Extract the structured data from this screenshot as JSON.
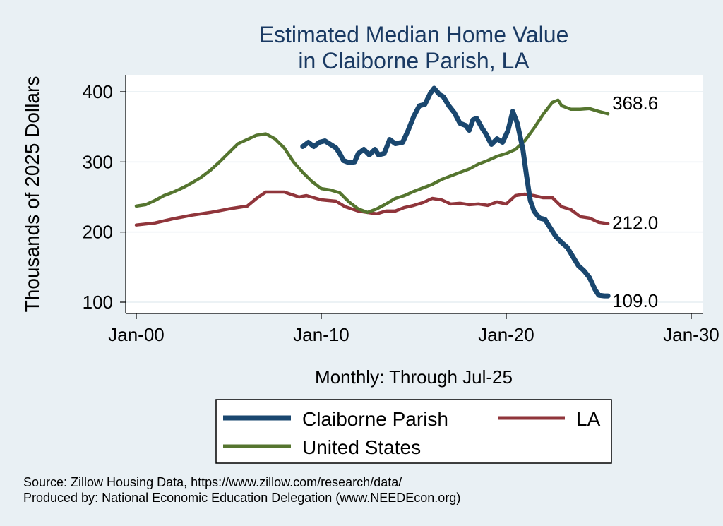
{
  "chart_data": {
    "type": "line",
    "title": [
      "Estimated Median Home Value",
      "in Claiborne Parish, LA"
    ],
    "xlabel": "Monthly: Through Jul-25",
    "ylabel": "Thousands of 2025 Dollars",
    "xlim": [
      2000,
      2030
    ],
    "ylim": [
      100,
      400
    ],
    "x_ticks": [
      {
        "value": 2000,
        "label": "Jan-00"
      },
      {
        "value": 2010,
        "label": "Jan-10"
      },
      {
        "value": 2020,
        "label": "Jan-20"
      },
      {
        "value": 2030,
        "label": "Jan-30"
      }
    ],
    "y_ticks": [
      {
        "value": 100,
        "label": "100"
      },
      {
        "value": 200,
        "label": "200"
      },
      {
        "value": 300,
        "label": "300"
      },
      {
        "value": 400,
        "label": "400"
      }
    ],
    "grid": true,
    "legend_position": "bottom",
    "series": [
      {
        "name": "Claiborne Parish",
        "color": "#1a476f",
        "end_label": "109.0",
        "points": [
          [
            2009.0,
            322
          ],
          [
            2009.3,
            328
          ],
          [
            2009.6,
            322
          ],
          [
            2009.9,
            328
          ],
          [
            2010.2,
            330
          ],
          [
            2010.5,
            325
          ],
          [
            2010.8,
            320
          ],
          [
            2011.0,
            312
          ],
          [
            2011.2,
            302
          ],
          [
            2011.5,
            299
          ],
          [
            2011.8,
            300
          ],
          [
            2012.0,
            312
          ],
          [
            2012.3,
            318
          ],
          [
            2012.6,
            310
          ],
          [
            2012.9,
            318
          ],
          [
            2013.1,
            310
          ],
          [
            2013.4,
            312
          ],
          [
            2013.7,
            332
          ],
          [
            2014.0,
            326
          ],
          [
            2014.4,
            328
          ],
          [
            2014.7,
            345
          ],
          [
            2015.0,
            365
          ],
          [
            2015.3,
            380
          ],
          [
            2015.6,
            382
          ],
          [
            2015.9,
            398
          ],
          [
            2016.1,
            405
          ],
          [
            2016.4,
            396
          ],
          [
            2016.6,
            393
          ],
          [
            2016.9,
            380
          ],
          [
            2017.2,
            370
          ],
          [
            2017.5,
            355
          ],
          [
            2017.8,
            352
          ],
          [
            2018.0,
            345
          ],
          [
            2018.2,
            360
          ],
          [
            2018.4,
            362
          ],
          [
            2018.7,
            348
          ],
          [
            2018.9,
            340
          ],
          [
            2019.2,
            325
          ],
          [
            2019.5,
            333
          ],
          [
            2019.8,
            328
          ],
          [
            2020.1,
            345
          ],
          [
            2020.35,
            372
          ],
          [
            2020.6,
            355
          ],
          [
            2020.9,
            318
          ],
          [
            2021.1,
            280
          ],
          [
            2021.3,
            245
          ],
          [
            2021.5,
            230
          ],
          [
            2021.8,
            220
          ],
          [
            2022.1,
            218
          ],
          [
            2022.4,
            205
          ],
          [
            2022.7,
            193
          ],
          [
            2023.0,
            185
          ],
          [
            2023.3,
            178
          ],
          [
            2023.6,
            165
          ],
          [
            2023.9,
            152
          ],
          [
            2024.2,
            145
          ],
          [
            2024.5,
            135
          ],
          [
            2024.8,
            118
          ],
          [
            2025.0,
            110
          ],
          [
            2025.3,
            109
          ],
          [
            2025.5,
            109
          ]
        ]
      },
      {
        "name": "LA",
        "color": "#90353b",
        "end_label": "212.0",
        "points": [
          [
            2000.0,
            210
          ],
          [
            2001.0,
            213
          ],
          [
            2002.0,
            219
          ],
          [
            2003.0,
            224
          ],
          [
            2004.0,
            228
          ],
          [
            2005.0,
            233
          ],
          [
            2006.0,
            237
          ],
          [
            2006.5,
            248
          ],
          [
            2007.0,
            257
          ],
          [
            2008.0,
            257
          ],
          [
            2008.8,
            250
          ],
          [
            2009.2,
            252
          ],
          [
            2010.0,
            246
          ],
          [
            2010.8,
            244
          ],
          [
            2011.3,
            236
          ],
          [
            2012.0,
            230
          ],
          [
            2012.5,
            228
          ],
          [
            2013.0,
            226
          ],
          [
            2013.5,
            230
          ],
          [
            2014.0,
            230
          ],
          [
            2014.5,
            235
          ],
          [
            2015.0,
            238
          ],
          [
            2015.5,
            242
          ],
          [
            2016.0,
            248
          ],
          [
            2016.5,
            246
          ],
          [
            2017.0,
            240
          ],
          [
            2017.5,
            241
          ],
          [
            2018.0,
            239
          ],
          [
            2018.5,
            240
          ],
          [
            2019.0,
            238
          ],
          [
            2019.5,
            243
          ],
          [
            2020.0,
            240
          ],
          [
            2020.5,
            252
          ],
          [
            2021.0,
            254
          ],
          [
            2021.5,
            252
          ],
          [
            2022.0,
            249
          ],
          [
            2022.5,
            249
          ],
          [
            2023.0,
            236
          ],
          [
            2023.5,
            232
          ],
          [
            2024.0,
            222
          ],
          [
            2024.5,
            220
          ],
          [
            2025.0,
            214
          ],
          [
            2025.5,
            212
          ]
        ]
      },
      {
        "name": "United States",
        "color": "#55752f",
        "end_label": "368.6",
        "points": [
          [
            2000.0,
            237
          ],
          [
            2000.5,
            239
          ],
          [
            2001.0,
            245
          ],
          [
            2001.5,
            252
          ],
          [
            2002.0,
            257
          ],
          [
            2002.5,
            263
          ],
          [
            2003.0,
            270
          ],
          [
            2003.5,
            278
          ],
          [
            2004.0,
            288
          ],
          [
            2004.5,
            300
          ],
          [
            2005.0,
            313
          ],
          [
            2005.5,
            326
          ],
          [
            2006.0,
            332
          ],
          [
            2006.5,
            338
          ],
          [
            2007.0,
            340
          ],
          [
            2007.5,
            333
          ],
          [
            2008.0,
            320
          ],
          [
            2008.5,
            300
          ],
          [
            2009.0,
            285
          ],
          [
            2009.5,
            272
          ],
          [
            2010.0,
            262
          ],
          [
            2010.5,
            260
          ],
          [
            2011.0,
            256
          ],
          [
            2011.5,
            243
          ],
          [
            2012.0,
            233
          ],
          [
            2012.5,
            228
          ],
          [
            2013.0,
            233
          ],
          [
            2013.5,
            240
          ],
          [
            2014.0,
            248
          ],
          [
            2014.5,
            252
          ],
          [
            2015.0,
            258
          ],
          [
            2015.5,
            263
          ],
          [
            2016.0,
            268
          ],
          [
            2016.5,
            275
          ],
          [
            2017.0,
            280
          ],
          [
            2017.5,
            285
          ],
          [
            2018.0,
            290
          ],
          [
            2018.5,
            297
          ],
          [
            2019.0,
            302
          ],
          [
            2019.5,
            308
          ],
          [
            2020.0,
            312
          ],
          [
            2020.5,
            318
          ],
          [
            2021.0,
            330
          ],
          [
            2021.5,
            348
          ],
          [
            2022.0,
            368
          ],
          [
            2022.5,
            385
          ],
          [
            2022.8,
            388
          ],
          [
            2023.0,
            380
          ],
          [
            2023.5,
            375
          ],
          [
            2024.0,
            375
          ],
          [
            2024.5,
            376
          ],
          [
            2025.0,
            372
          ],
          [
            2025.5,
            368.6
          ]
        ]
      }
    ],
    "legend": {
      "items": [
        {
          "label": "Claiborne Parish"
        },
        {
          "label": "LA"
        },
        {
          "label": "United States"
        }
      ]
    },
    "source_lines": [
      "Source: Zillow Housing Data, https://www.zillow.com/research/data/",
      "Produced by: National Economic Education Delegation (www.NEEDEcon.org)"
    ]
  }
}
